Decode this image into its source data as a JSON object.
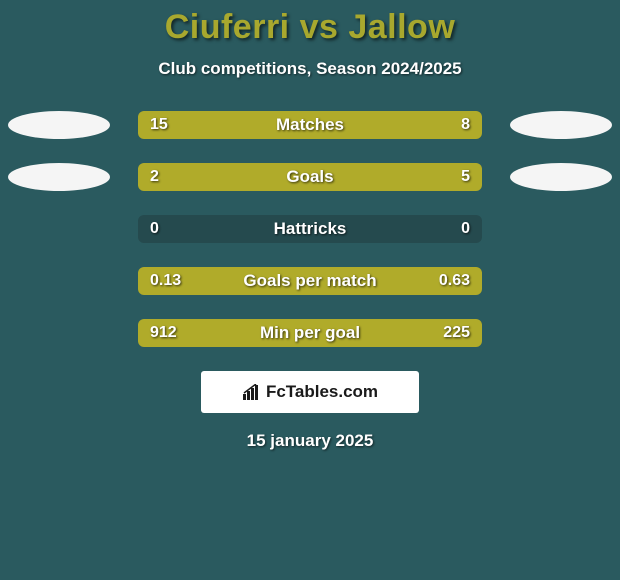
{
  "title": "Ciuferri vs Jallow",
  "subtitle": "Club competitions, Season 2024/2025",
  "logo": "FcTables.com",
  "date": "15 january 2025",
  "colors": {
    "background": "#2a5a5f",
    "title": "#a8a82e",
    "bar_fill": "#b0ab2a",
    "bar_bg": "#254a4e",
    "text": "#ffffff",
    "avatar_bg": "#f5f5f5"
  },
  "stats": [
    {
      "label": "Matches",
      "left_value": "15",
      "right_value": "8",
      "left_pct": 65.2,
      "right_pct": 34.8,
      "show_avatars": true
    },
    {
      "label": "Goals",
      "left_value": "2",
      "right_value": "5",
      "left_pct": 28.6,
      "right_pct": 71.4,
      "show_avatars": true
    },
    {
      "label": "Hattricks",
      "left_value": "0",
      "right_value": "0",
      "left_pct": 0,
      "right_pct": 0,
      "show_avatars": false
    },
    {
      "label": "Goals per match",
      "left_value": "0.13",
      "right_value": "0.63",
      "left_pct": 17.1,
      "right_pct": 82.9,
      "show_avatars": false
    },
    {
      "label": "Min per goal",
      "left_value": "912",
      "right_value": "225",
      "left_pct": 80.2,
      "right_pct": 19.8,
      "show_avatars": false
    }
  ]
}
